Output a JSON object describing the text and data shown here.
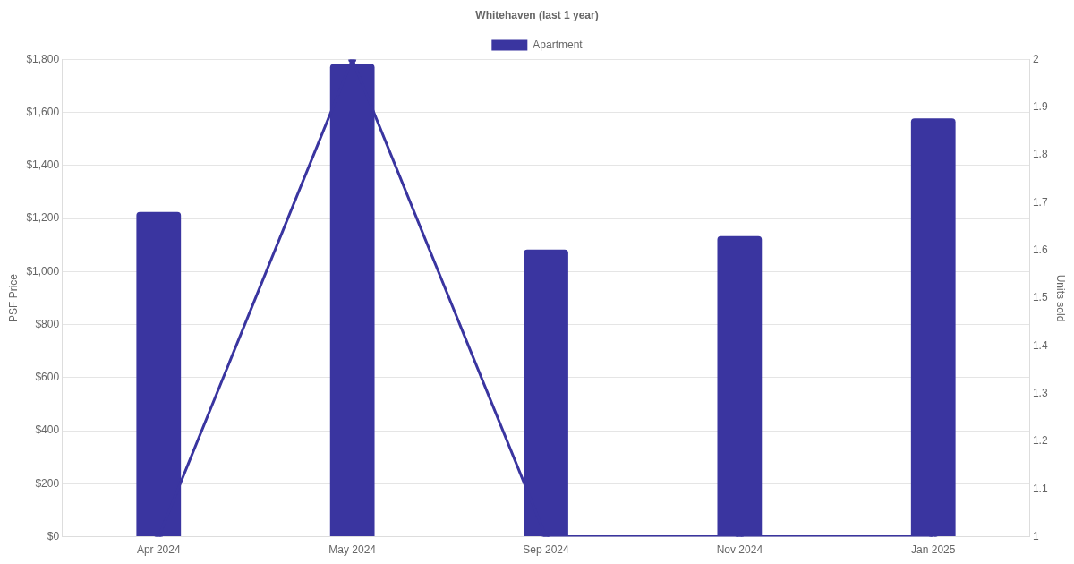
{
  "chart_data": {
    "type": "bar",
    "title": "Whitehaven (last 1 year)",
    "ylabel": "PSF Price",
    "y2label": "Units sold",
    "categories": [
      "Apr 2024",
      "May 2024",
      "Sep 2024",
      "Nov 2024",
      "Jan 2025"
    ],
    "series": [
      {
        "name": "Apartment",
        "color": "#3a35a0",
        "values": [
          1225,
          1783,
          1083,
          1134,
          1578
        ]
      },
      {
        "type": "line",
        "axis": "y2",
        "color": "#3a35a0",
        "values": [
          1,
          2,
          1,
          1,
          1
        ]
      }
    ],
    "ylim": [
      0,
      1800
    ],
    "yticks": [
      {
        "value": 0,
        "label": "$0"
      },
      {
        "value": 200,
        "label": "$200"
      },
      {
        "value": 400,
        "label": "$400"
      },
      {
        "value": 600,
        "label": "$600"
      },
      {
        "value": 800,
        "label": "$800"
      },
      {
        "value": 1000,
        "label": "$1,000"
      },
      {
        "value": 1200,
        "label": "$1,200"
      },
      {
        "value": 1400,
        "label": "$1,400"
      },
      {
        "value": 1600,
        "label": "$1,600"
      },
      {
        "value": 1800,
        "label": "$1,800"
      }
    ],
    "y2lim": [
      1,
      2
    ],
    "y2ticks": [
      1,
      1.1,
      1.2,
      1.3,
      1.4,
      1.5,
      1.6,
      1.7,
      1.8,
      1.9,
      2
    ],
    "grid": "y",
    "legend": "top",
    "marker": "circle",
    "line_style": "solid"
  }
}
